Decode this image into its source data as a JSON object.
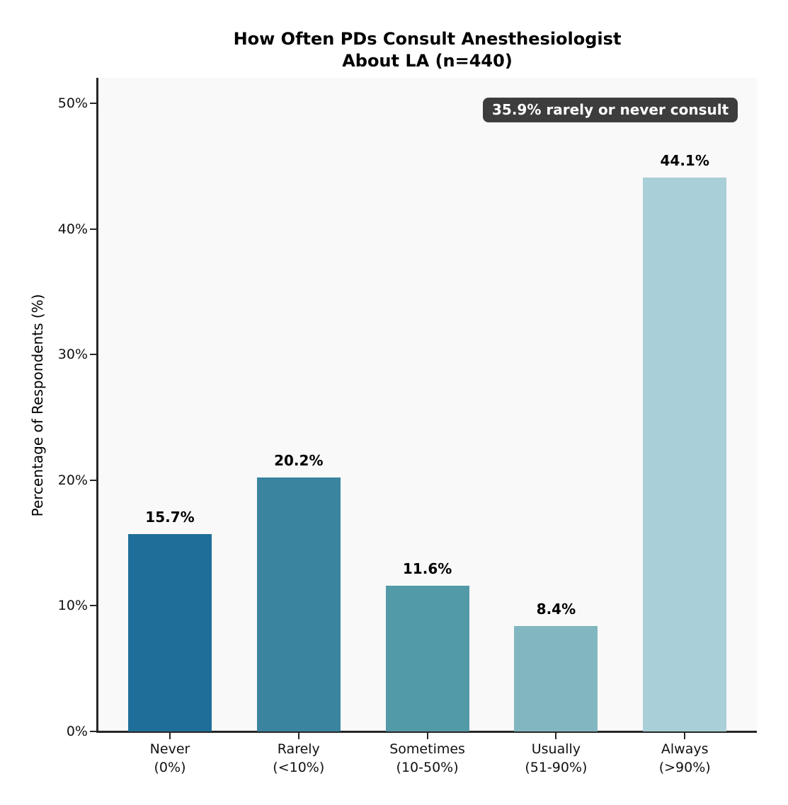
{
  "chart_data": {
    "type": "bar",
    "title": "How Often PDs Consult Anesthesiologist About LA (n=440)",
    "title_lines": [
      "How Often PDs Consult Anesthesiologist",
      "About LA (n=440)"
    ],
    "ylabel": "Percentage of Respondents (%)",
    "xlabel": "",
    "categories": [
      "Never",
      "Rarely",
      "Sometimes",
      "Usually",
      "Always"
    ],
    "category_sublabels": [
      "(0%)",
      "(<10%)",
      "(10-50%)",
      "(51-90%)",
      "(>90%)"
    ],
    "values": [
      15.7,
      20.2,
      11.6,
      8.4,
      44.1
    ],
    "value_labels": [
      "15.7%",
      "20.2%",
      "11.6%",
      "8.4%",
      "44.1%"
    ],
    "bar_colors": [
      "#1f6e99",
      "#3a84a0",
      "#539aa8",
      "#82b7c1",
      "#a9cfd8"
    ],
    "ylim": [
      0,
      52
    ],
    "yticks": [
      0,
      10,
      20,
      30,
      40,
      50
    ],
    "ytick_labels": [
      "0%",
      "10%",
      "20%",
      "30%",
      "40%",
      "50%"
    ],
    "grid": false,
    "legend": null,
    "plot_background": "#f9f9f9",
    "axis_color": "#262626",
    "annotation": {
      "text": "35.9% rarely or never consult",
      "bg_color": "#3d3d3d",
      "text_color": "#ffffff"
    }
  }
}
